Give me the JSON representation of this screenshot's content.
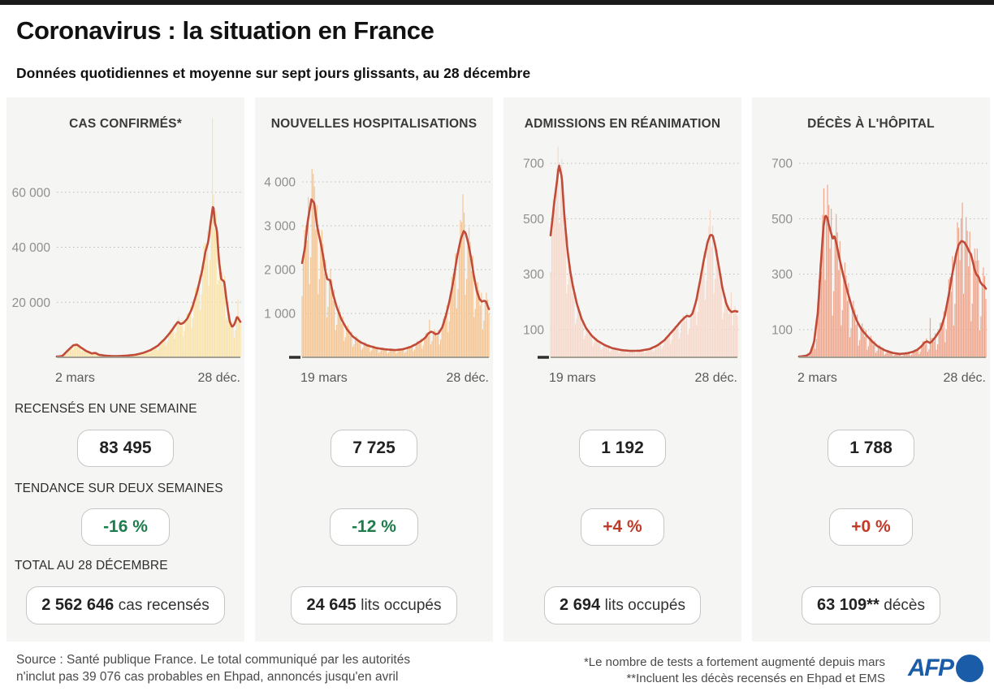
{
  "page": {
    "title": "Coronavirus : la situation en France",
    "subtitle": "Données quotidiennes et moyenne sur sept jours glissants, au 28 décembre"
  },
  "stat_labels": {
    "week": "RECENSÉS EN UNE SEMAINE",
    "trend": "TENDANCE SUR DEUX SEMAINES",
    "total": "TOTAL AU 28 DÉCEMBRE"
  },
  "panels": [
    {
      "title": "CAS CONFIRMÉS*",
      "week": "83 495",
      "trend": "-16 %",
      "trend_direction": "down",
      "total_number": "2 562 646",
      "total_suffix": "cas recensés",
      "x_start": "2 mars",
      "x_end": "28 déc."
    },
    {
      "title": "NOUVELLES HOSPITALISATIONS",
      "week": "7 725",
      "trend": "-12 %",
      "trend_direction": "down",
      "total_number": "24 645",
      "total_suffix": "lits occupés",
      "x_start": "19 mars",
      "x_end": "28 déc."
    },
    {
      "title": "ADMISSIONS EN RÉANIMATION",
      "week": "1 192",
      "trend": "+4 %",
      "trend_direction": "up",
      "total_number": "2 694",
      "total_suffix": "lits occupés",
      "x_start": "19 mars",
      "x_end": "28 déc."
    },
    {
      "title": "DÉCÈS À L'HÔPITAL",
      "week": "1 788",
      "trend": "+0 %",
      "trend_direction": "up",
      "total_number": "63 109**",
      "total_suffix": "décès",
      "x_start": "2 mars",
      "x_end": "28 déc."
    }
  ],
  "colors": {
    "trend_down": "#1e7b4b",
    "trend_up": "#c03a28",
    "line": "#bf4b38",
    "afp_blue": "#1b5ca8",
    "panel_bg": "#f5f5f3"
  },
  "footer": {
    "source_line1": "Source : Santé publique France. Le total communiqué par les autorités",
    "source_line2": "n'inclut pas 39 076 cas probables en Ehpad, annoncés jusqu'en avril",
    "note1": "*Le nombre de tests a fortement augmenté depuis mars",
    "note2": "**Incluent les décès recensés en Ehpad et EMS",
    "logo": "AFP"
  },
  "chart_data": [
    {
      "type": "combo-bar-line",
      "title": "CAS CONFIRMÉS*",
      "x_start_label": "2 mars",
      "x_end_label": "28 déc.",
      "ylim": [
        0,
        88000
      ],
      "yticks": [
        {
          "value": 20000,
          "label": "20 000"
        },
        {
          "value": 40000,
          "label": "40 000"
        },
        {
          "value": 60000,
          "label": "60 000"
        }
      ],
      "grid": "dotted-horizontal",
      "fill_color": "#fae3a8",
      "line_color": "#bf4b38",
      "n_bars": 152,
      "bar_weekly_pattern": [
        0.75,
        1.02,
        1.15,
        1.1,
        0.95,
        1.12,
        0.6
      ],
      "bar_spikes": [
        [
          0.848,
          87000
        ],
        [
          0.985,
          21000
        ]
      ],
      "line_keypoints": [
        [
          0,
          150
        ],
        [
          0.03,
          500
        ],
        [
          0.06,
          2500
        ],
        [
          0.09,
          4400
        ],
        [
          0.11,
          4600
        ],
        [
          0.13,
          3600
        ],
        [
          0.16,
          2300
        ],
        [
          0.19,
          1400
        ],
        [
          0.21,
          1600
        ],
        [
          0.23,
          900
        ],
        [
          0.27,
          550
        ],
        [
          0.31,
          420
        ],
        [
          0.35,
          480
        ],
        [
          0.39,
          650
        ],
        [
          0.43,
          950
        ],
        [
          0.47,
          1600
        ],
        [
          0.51,
          2600
        ],
        [
          0.55,
          4200
        ],
        [
          0.59,
          6800
        ],
        [
          0.62,
          9200
        ],
        [
          0.645,
          11600
        ],
        [
          0.66,
          12900
        ],
        [
          0.675,
          12100
        ],
        [
          0.69,
          12500
        ],
        [
          0.71,
          14000
        ],
        [
          0.735,
          17500
        ],
        [
          0.765,
          24000
        ],
        [
          0.79,
          31000
        ],
        [
          0.81,
          38500
        ],
        [
          0.825,
          42000
        ],
        [
          0.84,
          50000
        ],
        [
          0.852,
          55500
        ],
        [
          0.862,
          48500
        ],
        [
          0.872,
          46500
        ],
        [
          0.882,
          36000
        ],
        [
          0.895,
          28500
        ],
        [
          0.912,
          27500
        ],
        [
          0.928,
          19000
        ],
        [
          0.942,
          13000
        ],
        [
          0.955,
          11000
        ],
        [
          0.968,
          12000
        ],
        [
          0.982,
          14800
        ],
        [
          1,
          12900
        ]
      ]
    },
    {
      "type": "combo-bar-line",
      "title": "NOUVELLES HOSPITALISATIONS",
      "x_start_label": "19 mars",
      "x_end_label": "28 déc.",
      "ylim": [
        0,
        4800
      ],
      "yticks": [
        {
          "value": 1000,
          "label": "1 000"
        },
        {
          "value": 2000,
          "label": "2 000"
        },
        {
          "value": 3000,
          "label": "3 000"
        },
        {
          "value": 4000,
          "label": "4 000"
        }
      ],
      "grid": "dotted-horizontal",
      "fill_color": "#f5c491",
      "line_color": "#bf4b38",
      "n_bars": 152,
      "bar_weekly_pattern": [
        0.65,
        1.0,
        1.18,
        1.12,
        0.9,
        1.15,
        0.5
      ],
      "bar_spikes": [
        [
          0.055,
          4300
        ],
        [
          0.685,
          860
        ],
        [
          0.86,
          3720
        ]
      ],
      "axis_notch": true,
      "line_keypoints": [
        [
          0,
          2150
        ],
        [
          0.015,
          2500
        ],
        [
          0.03,
          3100
        ],
        [
          0.05,
          3600
        ],
        [
          0.065,
          3520
        ],
        [
          0.08,
          3000
        ],
        [
          0.1,
          2600
        ],
        [
          0.115,
          2250
        ],
        [
          0.125,
          1950
        ],
        [
          0.135,
          1780
        ],
        [
          0.15,
          1760
        ],
        [
          0.165,
          1450
        ],
        [
          0.185,
          1150
        ],
        [
          0.21,
          870
        ],
        [
          0.24,
          640
        ],
        [
          0.27,
          480
        ],
        [
          0.31,
          350
        ],
        [
          0.35,
          270
        ],
        [
          0.4,
          210
        ],
        [
          0.45,
          180
        ],
        [
          0.5,
          165
        ],
        [
          0.54,
          185
        ],
        [
          0.58,
          235
        ],
        [
          0.61,
          300
        ],
        [
          0.64,
          380
        ],
        [
          0.66,
          450
        ],
        [
          0.675,
          540
        ],
        [
          0.69,
          585
        ],
        [
          0.7,
          570
        ],
        [
          0.715,
          525
        ],
        [
          0.73,
          545
        ],
        [
          0.75,
          680
        ],
        [
          0.77,
          950
        ],
        [
          0.79,
          1300
        ],
        [
          0.81,
          1750
        ],
        [
          0.83,
          2300
        ],
        [
          0.85,
          2700
        ],
        [
          0.865,
          2880
        ],
        [
          0.875,
          2840
        ],
        [
          0.89,
          2600
        ],
        [
          0.905,
          2250
        ],
        [
          0.92,
          1850
        ],
        [
          0.935,
          1520
        ],
        [
          0.95,
          1330
        ],
        [
          0.962,
          1270
        ],
        [
          0.975,
          1290
        ],
        [
          0.985,
          1270
        ],
        [
          1,
          1100
        ]
      ]
    },
    {
      "type": "combo-bar-line",
      "title": "ADMISSIONS EN RÉANIMATION",
      "x_start_label": "19 mars",
      "x_end_label": "28 déc.",
      "ylim": [
        0,
        800
      ],
      "yticks": [
        {
          "value": 100,
          "label": "100"
        },
        {
          "value": 300,
          "label": "300"
        },
        {
          "value": 500,
          "label": "500"
        },
        {
          "value": 700,
          "label": "700"
        }
      ],
      "grid": "dotted-horizontal",
      "fill_color": "#f6d8ca",
      "line_color": "#bf4b38",
      "n_bars": 152,
      "bar_weekly_pattern": [
        0.7,
        0.95,
        1.1,
        1.05,
        0.9,
        1.08,
        0.55
      ],
      "bar_spikes": [
        [
          0.042,
          760
        ],
        [
          0.852,
          532
        ],
        [
          0.97,
          235
        ]
      ],
      "axis_notch": true,
      "line_keypoints": [
        [
          0,
          440
        ],
        [
          0.02,
          560
        ],
        [
          0.045,
          695
        ],
        [
          0.06,
          650
        ],
        [
          0.075,
          500
        ],
        [
          0.09,
          390
        ],
        [
          0.105,
          310
        ],
        [
          0.12,
          255
        ],
        [
          0.14,
          195
        ],
        [
          0.165,
          140
        ],
        [
          0.19,
          105
        ],
        [
          0.22,
          78
        ],
        [
          0.25,
          60
        ],
        [
          0.29,
          44
        ],
        [
          0.33,
          33
        ],
        [
          0.38,
          26
        ],
        [
          0.43,
          23
        ],
        [
          0.48,
          24
        ],
        [
          0.53,
          30
        ],
        [
          0.57,
          42
        ],
        [
          0.61,
          62
        ],
        [
          0.64,
          85
        ],
        [
          0.67,
          108
        ],
        [
          0.695,
          128
        ],
        [
          0.715,
          142
        ],
        [
          0.73,
          150
        ],
        [
          0.745,
          147
        ],
        [
          0.76,
          158
        ],
        [
          0.78,
          205
        ],
        [
          0.8,
          275
        ],
        [
          0.82,
          350
        ],
        [
          0.84,
          415
        ],
        [
          0.855,
          442
        ],
        [
          0.868,
          440
        ],
        [
          0.882,
          400
        ],
        [
          0.9,
          330
        ],
        [
          0.92,
          250
        ],
        [
          0.94,
          195
        ],
        [
          0.955,
          172
        ],
        [
          0.97,
          163
        ],
        [
          0.985,
          167
        ],
        [
          1,
          165
        ]
      ]
    },
    {
      "type": "combo-bar-line",
      "title": "DÉCÈS À L'HÔPITAL",
      "x_start_label": "2 mars",
      "x_end_label": "28 déc.",
      "ylim": [
        0,
        800
      ],
      "yticks": [
        {
          "value": 100,
          "label": "100"
        },
        {
          "value": 300,
          "label": "300"
        },
        {
          "value": 500,
          "label": "500"
        },
        {
          "value": 700,
          "label": "700"
        }
      ],
      "grid": "dotted-horizontal",
      "fill_color": "#efa58c",
      "line_color": "#bf4b38",
      "n_bars": 152,
      "bar_weekly_pattern": [
        0.55,
        1.0,
        1.25,
        1.15,
        0.85,
        1.2,
        0.35
      ],
      "bar_spikes": [
        [
          0.135,
          610
        ],
        [
          0.7,
          142
        ],
        [
          0.875,
          558
        ],
        [
          0.955,
          392
        ]
      ],
      "line_keypoints": [
        [
          0,
          2
        ],
        [
          0.04,
          6
        ],
        [
          0.06,
          15
        ],
        [
          0.08,
          55
        ],
        [
          0.1,
          160
        ],
        [
          0.115,
          320
        ],
        [
          0.13,
          470
        ],
        [
          0.14,
          512
        ],
        [
          0.15,
          505
        ],
        [
          0.16,
          475
        ],
        [
          0.17,
          452
        ],
        [
          0.18,
          428
        ],
        [
          0.19,
          438
        ],
        [
          0.2,
          410
        ],
        [
          0.215,
          360
        ],
        [
          0.235,
          300
        ],
        [
          0.26,
          235
        ],
        [
          0.285,
          175
        ],
        [
          0.31,
          130
        ],
        [
          0.335,
          100
        ],
        [
          0.36,
          80
        ],
        [
          0.39,
          58
        ],
        [
          0.42,
          40
        ],
        [
          0.46,
          25
        ],
        [
          0.5,
          16
        ],
        [
          0.54,
          12
        ],
        [
          0.58,
          15
        ],
        [
          0.61,
          20
        ],
        [
          0.635,
          28
        ],
        [
          0.655,
          40
        ],
        [
          0.67,
          52
        ],
        [
          0.685,
          58
        ],
        [
          0.7,
          52
        ],
        [
          0.715,
          60
        ],
        [
          0.735,
          78
        ],
        [
          0.76,
          105
        ],
        [
          0.78,
          150
        ],
        [
          0.8,
          220
        ],
        [
          0.82,
          300
        ],
        [
          0.84,
          370
        ],
        [
          0.855,
          408
        ],
        [
          0.87,
          420
        ],
        [
          0.885,
          415
        ],
        [
          0.9,
          398
        ],
        [
          0.91,
          382
        ],
        [
          0.92,
          372
        ],
        [
          0.93,
          345
        ],
        [
          0.94,
          315
        ],
        [
          0.95,
          298
        ],
        [
          0.96,
          292
        ],
        [
          0.97,
          272
        ],
        [
          0.98,
          262
        ],
        [
          0.99,
          258
        ],
        [
          1,
          248
        ]
      ]
    }
  ]
}
